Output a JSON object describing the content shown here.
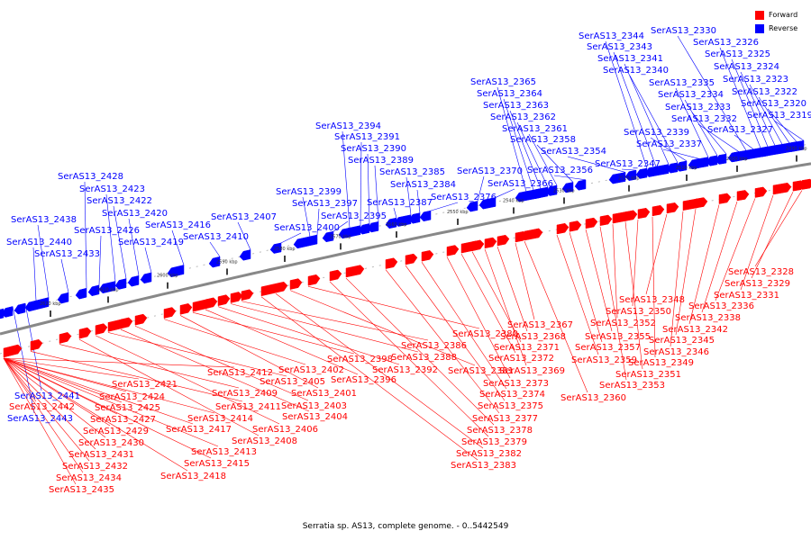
{
  "title": "Serratia sp. AS13, complete genome. - 0..5442549",
  "legend": [
    {
      "label": "Forward",
      "color": "#ff0000"
    },
    {
      "label": "Reverse",
      "color": "#0000ff"
    }
  ],
  "colors": {
    "forward": "#ff0000",
    "reverse": "#0000ff",
    "backbone": "#888888"
  },
  "ticks": [
    "2490 kbp",
    "2500 kbp",
    "2510 kbp",
    "2520 kbp",
    "2530 kbp",
    "2540 kbp",
    "2550 kbp",
    "2560 kbp",
    "2570 kbp",
    "2580 kbp",
    "2590 kbp",
    "2600 kbp",
    "2610 kbp",
    "2620 kbp"
  ],
  "reverse_genes": [
    "SerAS13_2319",
    "SerAS13_2320",
    "SerAS13_2322",
    "SerAS13_2323",
    "SerAS13_2324",
    "SerAS13_2325",
    "SerAS13_2326",
    "SerAS13_2327",
    "SerAS13_2330",
    "SerAS13_2332",
    "SerAS13_2333",
    "SerAS13_2334",
    "SerAS13_2335",
    "SerAS13_2337",
    "SerAS13_2339",
    "SerAS13_2340",
    "SerAS13_2341",
    "SerAS13_2343",
    "SerAS13_2344",
    "SerAS13_2347",
    "SerAS13_2354",
    "SerAS13_2356",
    "SerAS13_2358",
    "SerAS13_2361",
    "SerAS13_2362",
    "SerAS13_2363",
    "SerAS13_2364",
    "SerAS13_2365",
    "SerAS13_2366",
    "SerAS13_2370",
    "SerAS13_2376",
    "SerAS13_2384",
    "SerAS13_2385",
    "SerAS13_2387",
    "SerAS13_2389",
    "SerAS13_2390",
    "SerAS13_2391",
    "SerAS13_2394",
    "SerAS13_2395",
    "SerAS13_2397",
    "SerAS13_2399",
    "SerAS13_2400",
    "SerAS13_2407",
    "SerAS13_2410",
    "SerAS13_2416",
    "SerAS13_2419",
    "SerAS13_2420",
    "SerAS13_2422",
    "SerAS13_2423",
    "SerAS13_2426",
    "SerAS13_2428",
    "SerAS13_2433",
    "SerAS13_2438",
    "SerAS13_2440",
    "SerAS13_2441",
    "SerAS13_2443"
  ],
  "forward_genes": [
    "SerAS13_2328",
    "SerAS13_2329",
    "SerAS13_2331",
    "SerAS13_2336",
    "SerAS13_2338",
    "SerAS13_2342",
    "SerAS13_2345",
    "SerAS13_2346",
    "SerAS13_2348",
    "SerAS13_2349",
    "SerAS13_2350",
    "SerAS13_2351",
    "SerAS13_2352",
    "SerAS13_2353",
    "SerAS13_2355",
    "SerAS13_2357",
    "SerAS13_2359",
    "SerAS13_2360",
    "SerAS13_2367",
    "SerAS13_2368",
    "SerAS13_2369",
    "SerAS13_2371",
    "SerAS13_2372",
    "SerAS13_2373",
    "SerAS13_2374",
    "SerAS13_2375",
    "SerAS13_2377",
    "SerAS13_2378",
    "SerAS13_2379",
    "SerAS13_2380",
    "SerAS13_2381",
    "SerAS13_2382",
    "SerAS13_2383",
    "SerAS13_2386",
    "SerAS13_2388",
    "SerAS13_2392",
    "SerAS13_2396",
    "SerAS13_2398",
    "SerAS13_2401",
    "SerAS13_2402",
    "SerAS13_2403",
    "SerAS13_2404",
    "SerAS13_2405",
    "SerAS13_2406",
    "SerAS13_2408",
    "SerAS13_2409",
    "SerAS13_2411",
    "SerAS13_2412",
    "SerAS13_2413",
    "SerAS13_2414",
    "SerAS13_2415",
    "SerAS13_2417",
    "SerAS13_2418",
    "SerAS13_2421",
    "SerAS13_2424",
    "SerAS13_2425",
    "SerAS13_2427",
    "SerAS13_2429",
    "SerAS13_2430",
    "SerAS13_2431",
    "SerAS13_2432",
    "SerAS13_2434",
    "SerAS13_2435",
    "SerAS13_2442"
  ]
}
